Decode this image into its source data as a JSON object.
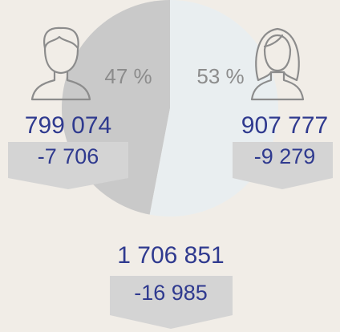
{
  "chart_data": {
    "type": "pie",
    "values": [
      47,
      53
    ],
    "value_labels": [
      "47 %",
      "53 %"
    ],
    "colors": [
      "#c9c9c9",
      "#e9eef0"
    ],
    "annotations": {
      "left_total": "799 074",
      "left_change": "-7 706",
      "right_total": "907 777",
      "right_change": "-9 279",
      "grand_total": "1 706 851",
      "grand_change": "-16 985"
    }
  }
}
